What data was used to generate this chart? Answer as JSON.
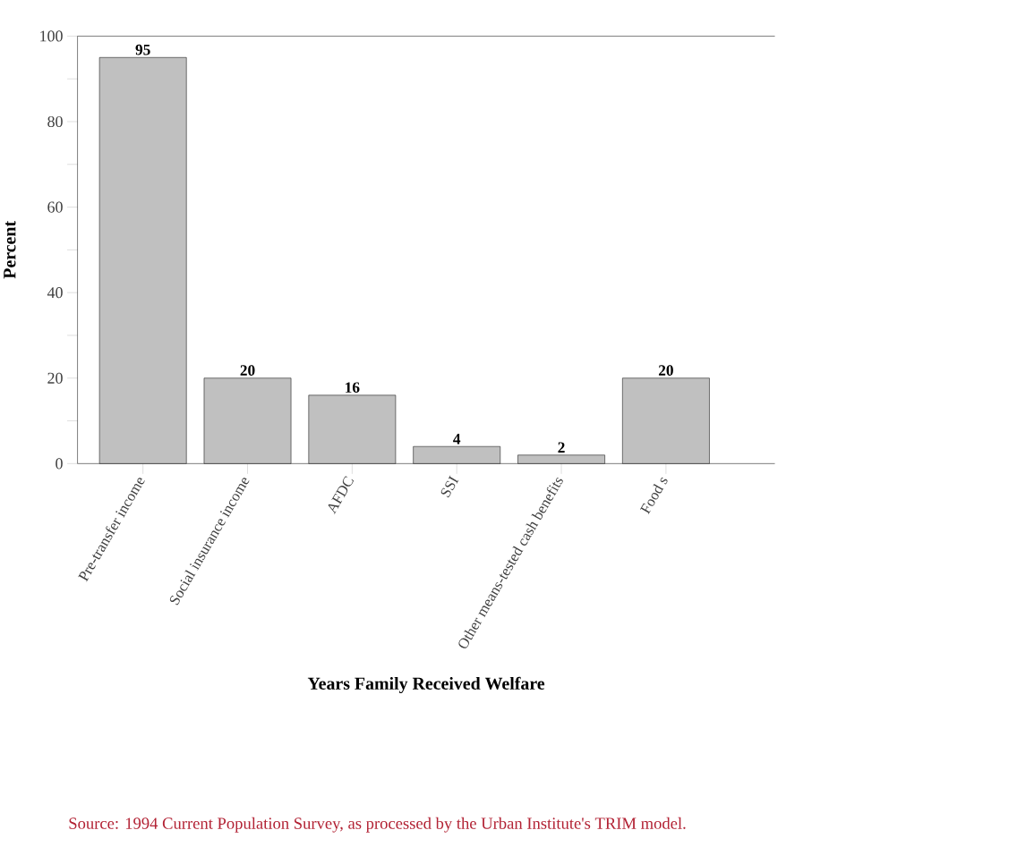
{
  "chart_data": {
    "type": "bar",
    "xlabel": "Years Family Received Welfare",
    "ylabel": "Percent",
    "categories": [
      "Pre-transfer income",
      "Social insurance income",
      "AFDC",
      "SSI",
      "Other means-tested cash benefits",
      "Food s"
    ],
    "values": [
      95,
      20,
      16,
      4,
      2,
      20
    ],
    "color": "#c0c0c0",
    "ylim": [
      0,
      100
    ],
    "yticks": [
      0,
      {
        "value": 10,
        "label": null
      },
      20,
      {
        "value": 30,
        "label": null
      },
      40,
      {
        "value": 50,
        "label": null
      },
      60,
      {
        "value": 70,
        "label": null
      },
      80,
      {
        "value": 90,
        "label": null
      },
      100
    ],
    "data_labels": true,
    "grid": false,
    "annotations": [
      "Source: 1994 Current Population Survey, as processed by the Urban Institute's TRIM model."
    ]
  }
}
